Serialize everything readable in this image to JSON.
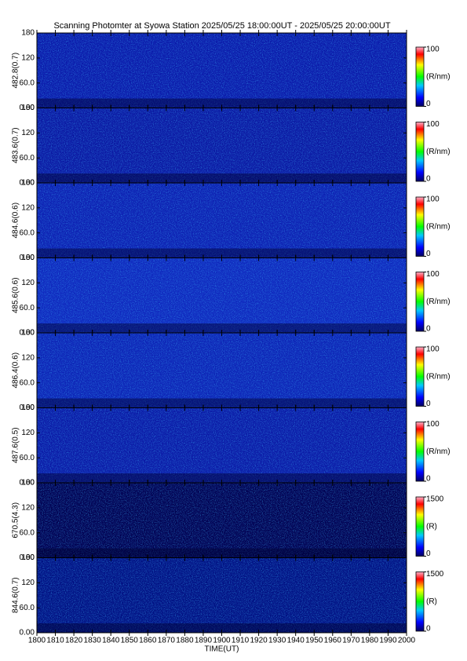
{
  "title": "Scanning Photomter at Syowa Station 2025/05/25 18:00:00UT - 2025/05/25 20:00:00UT",
  "chart_data": [
    {
      "type": "heatmap",
      "ylabel": "482.8(0.7)",
      "color": "#0a1aa8",
      "ylim": [
        0,
        180
      ],
      "yticks": [
        {
          "value": 0,
          "label": "0.00"
        },
        {
          "value": 60,
          "label": "60.0"
        },
        120,
        180
      ],
      "colorbar": {
        "label": "(R/nm)",
        "lim": [
          0,
          100
        ],
        "ticks": [
          0,
          100
        ]
      }
    },
    {
      "type": "heatmap",
      "ylabel": "483.6(0.7)",
      "color": "#0a18a0",
      "ylim": [
        0,
        180
      ],
      "yticks": [
        {
          "value": 0,
          "label": "0.00"
        },
        {
          "value": 60,
          "label": "60.0"
        },
        120,
        180
      ],
      "colorbar": {
        "label": "(R/nm)",
        "lim": [
          0,
          100
        ],
        "ticks": [
          0,
          100
        ]
      }
    },
    {
      "type": "heatmap",
      "ylabel": "484.6(0.6)",
      "color": "#0c20b0",
      "ylim": [
        0,
        180
      ],
      "yticks": [
        {
          "value": 0,
          "label": "0.00"
        },
        {
          "value": 60,
          "label": "60.0"
        },
        120,
        180
      ],
      "colorbar": {
        "label": "(R/nm)",
        "lim": [
          0,
          100
        ],
        "ticks": [
          0,
          100
        ]
      }
    },
    {
      "type": "heatmap",
      "ylabel": "485.6(0.6)",
      "color": "#0e28bc",
      "ylim": [
        0,
        180
      ],
      "yticks": [
        {
          "value": 0,
          "label": "0.00"
        },
        {
          "value": 60,
          "label": "60.0"
        },
        120,
        180
      ],
      "colorbar": {
        "label": "(R/nm)",
        "lim": [
          0,
          100
        ],
        "ticks": [
          0,
          100
        ]
      }
    },
    {
      "type": "heatmap",
      "ylabel": "486.4(0.6)",
      "color": "#0c24b4",
      "ylim": [
        0,
        180
      ],
      "yticks": [
        {
          "value": 0,
          "label": "0.00"
        },
        {
          "value": 60,
          "label": "60.0"
        },
        120,
        180
      ],
      "colorbar": {
        "label": "(R/nm)",
        "lim": [
          0,
          100
        ],
        "ticks": [
          0,
          100
        ]
      }
    },
    {
      "type": "heatmap",
      "ylabel": "487.6(0.5)",
      "color": "#0a1aa4",
      "ylim": [
        0,
        180
      ],
      "yticks": [
        {
          "value": 0,
          "label": "0.00"
        },
        {
          "value": 60,
          "label": "60.0"
        },
        120,
        180
      ],
      "colorbar": {
        "label": "(R/nm)",
        "lim": [
          0,
          100
        ],
        "ticks": [
          0,
          100
        ]
      }
    },
    {
      "type": "heatmap",
      "ylabel": "670.5(4.3)",
      "color": "#00004e",
      "ylim": [
        0,
        180
      ],
      "yticks": [
        {
          "value": 0,
          "label": "0.00"
        },
        {
          "value": 60,
          "label": "60.0"
        },
        120,
        180
      ],
      "colorbar": {
        "label": "(R)",
        "lim": [
          0,
          1500
        ],
        "ticks": [
          0,
          1500
        ]
      }
    },
    {
      "type": "heatmap",
      "ylabel": "844.6(0.7)",
      "color": "#001080",
      "ylim": [
        0,
        180
      ],
      "yticks": [
        {
          "value": 0,
          "label": "0.00"
        },
        {
          "value": 60,
          "label": "60.0"
        },
        120,
        180
      ],
      "colorbar": {
        "label": "(R)",
        "lim": [
          0,
          1500
        ],
        "ticks": [
          0,
          1500
        ]
      },
      "xlabel": "TIME(UT)",
      "xlim": [
        1800,
        2000
      ],
      "xticks": [
        1800,
        1810,
        1820,
        1830,
        1840,
        1850,
        1860,
        1870,
        1880,
        1890,
        1900,
        1910,
        1920,
        1930,
        1940,
        1950,
        1960,
        1970,
        1980,
        1990,
        2000
      ]
    }
  ]
}
